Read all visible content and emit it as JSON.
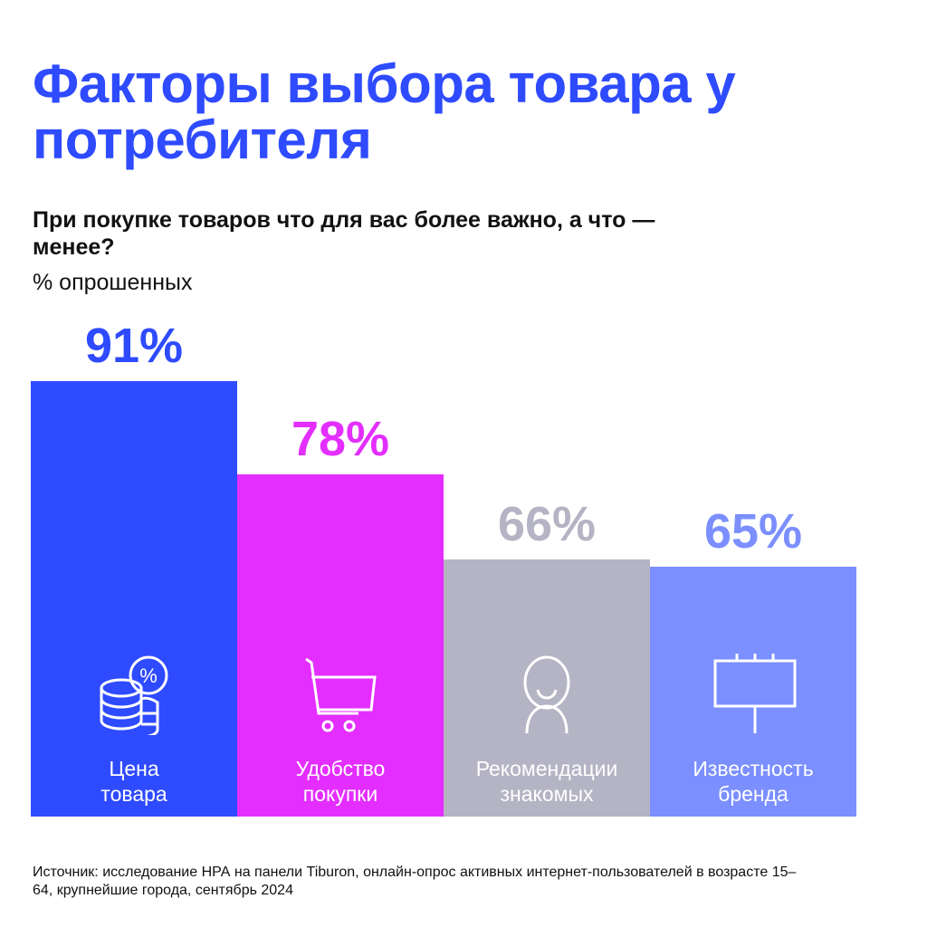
{
  "title": "Факторы выбора товара у потребителя",
  "question": "При покупке товаров что для вас более важно, а что — менее?",
  "unit": "% опрошенных",
  "source": "Источник: исследование НРА на панели Tiburon, онлайн-опрос активных интернет-пользователей в возрасте 15–64, крупнейшие города, сентябрь 2024",
  "chart_data": {
    "type": "bar",
    "title": "Факторы выбора товара у потребителя",
    "ylabel": "% опрошенных",
    "categories": [
      "Цена товара",
      "Удобство покупки",
      "Рекомендации знакомых",
      "Известность бренда"
    ],
    "values": [
      91,
      78,
      66,
      65
    ],
    "value_labels": [
      "91%",
      "78%",
      "66%",
      "65%"
    ],
    "colors": [
      "#2F4BFF",
      "#E42EFF",
      "#B4B4C4",
      "#7B8FFF"
    ],
    "icons": [
      "coins-percent-icon",
      "shopping-cart-icon",
      "person-icon",
      "billboard-icon"
    ],
    "ylim": [
      30,
      91
    ]
  }
}
